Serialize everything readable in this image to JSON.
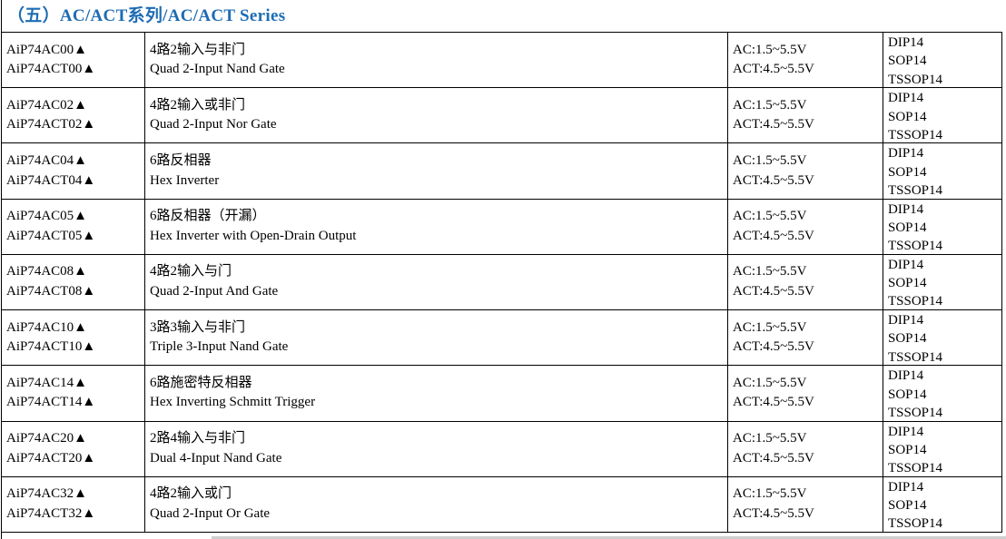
{
  "title": "（五）AC/ACT系列/AC/ACT Series",
  "colors": {
    "title_blue": "#1e6cb3",
    "border": "#000000",
    "text": "#000000"
  },
  "table": {
    "columns": [
      "part_numbers",
      "description",
      "voltage_range",
      "packages"
    ],
    "rows": [
      {
        "part1": "AiP74AC00▲",
        "part2": "AiP74ACT00▲",
        "desc_cn": "4路2输入与非门",
        "desc_en": "Quad 2-Input Nand Gate",
        "volt1": "AC:1.5~5.5V",
        "volt2": "ACT:4.5~5.5V",
        "packages": [
          "DIP14",
          "SOP14",
          "TSSOP14"
        ]
      },
      {
        "part1": "AiP74AC02▲",
        "part2": "AiP74ACT02▲",
        "desc_cn": "4路2输入或非门",
        "desc_en": "Quad 2-Input Nor Gate",
        "volt1": "AC:1.5~5.5V",
        "volt2": "ACT:4.5~5.5V",
        "packages": [
          "DIP14",
          "SOP14",
          "TSSOP14"
        ]
      },
      {
        "part1": "AiP74AC04▲",
        "part2": "AiP74ACT04▲",
        "desc_cn": "6路反相器",
        "desc_en": "Hex Inverter",
        "volt1": "AC:1.5~5.5V",
        "volt2": "ACT:4.5~5.5V",
        "packages": [
          "DIP14",
          "SOP14",
          "TSSOP14"
        ]
      },
      {
        "part1": "AiP74AC05▲",
        "part2": "AiP74ACT05▲",
        "desc_cn": "6路反相器（开漏）",
        "desc_en": "Hex Inverter with Open-Drain Output",
        "volt1": "AC:1.5~5.5V",
        "volt2": "ACT:4.5~5.5V",
        "packages": [
          "DIP14",
          "SOP14",
          "TSSOP14"
        ]
      },
      {
        "part1": "AiP74AC08▲",
        "part2": "AiP74ACT08▲",
        "desc_cn": "4路2输入与门",
        "desc_en": "Quad 2-Input And Gate",
        "volt1": "AC:1.5~5.5V",
        "volt2": "ACT:4.5~5.5V",
        "packages": [
          "DIP14",
          "SOP14",
          "TSSOP14"
        ]
      },
      {
        "part1": "AiP74AC10▲",
        "part2": "AiP74ACT10▲",
        "desc_cn": "3路3输入与非门",
        "desc_en": "Triple 3-Input Nand Gate",
        "volt1": "AC:1.5~5.5V",
        "volt2": "ACT:4.5~5.5V",
        "packages": [
          "DIP14",
          "SOP14",
          "TSSOP14"
        ]
      },
      {
        "part1": "AiP74AC14▲",
        "part2": "AiP74ACT14▲",
        "desc_cn": "6路施密特反相器",
        "desc_en": "Hex Inverting Schmitt Trigger",
        "volt1": "AC:1.5~5.5V",
        "volt2": "ACT:4.5~5.5V",
        "packages": [
          "DIP14",
          "SOP14",
          "TSSOP14"
        ]
      },
      {
        "part1": "AiP74AC20▲",
        "part2": "AiP74ACT20▲",
        "desc_cn": "2路4输入与非门",
        "desc_en": "Dual 4-Input Nand Gate",
        "volt1": "AC:1.5~5.5V",
        "volt2": "ACT:4.5~5.5V",
        "packages": [
          "DIP14",
          "SOP14",
          "TSSOP14"
        ]
      },
      {
        "part1": "AiP74AC32▲",
        "part2": "AiP74ACT32▲",
        "desc_cn": "4路2输入或门",
        "desc_en": "Quad 2-Input Or Gate",
        "volt1": "AC:1.5~5.5V",
        "volt2": "ACT:4.5~5.5V",
        "packages": [
          "DIP14",
          "SOP14",
          "TSSOP14"
        ]
      }
    ]
  }
}
